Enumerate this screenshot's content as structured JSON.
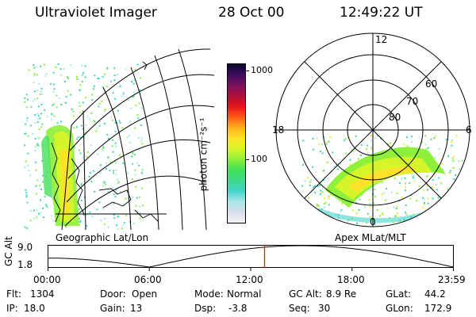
{
  "header": {
    "instrument": "Ultraviolet Imager",
    "date": "28 Oct 00",
    "time": "12:49:22 UT"
  },
  "colorbar": {
    "unit_label": "photon cm⁻²s⁻¹",
    "ticks": [
      {
        "label": "1000",
        "value": 1000
      },
      {
        "label": "100",
        "value": 100
      }
    ],
    "range": [
      20,
      1300
    ],
    "colors": [
      "#f4f4f4",
      "#d8dde8",
      "#a9e6e8",
      "#41d4c8",
      "#3fd98a",
      "#43e05a",
      "#8ef03a",
      "#d5f52a",
      "#ffe227",
      "#ffae1d",
      "#ff5a16",
      "#e3141b",
      "#b00f3a",
      "#7b1062",
      "#3e0c5e",
      "#0a0730"
    ]
  },
  "panels": {
    "left_label": "Geographic Lat/Lon",
    "right_label": "Apex  MLat/MLT"
  },
  "polar_plot": {
    "mlt_labels": [
      "12",
      "18",
      "6",
      "0"
    ],
    "lat_labels": [
      "60",
      "70",
      "80"
    ]
  },
  "timeline": {
    "y_axis_label": "GC Alt",
    "y_ticks": [
      "9.0",
      "1.8"
    ],
    "y_range": [
      1.8,
      9.0
    ],
    "x_ticks": [
      "00:00",
      "06:00",
      "12:00",
      "18:00",
      "23:59"
    ],
    "current_time_hours": 12.82,
    "marker_color": "#ff0000"
  },
  "status": {
    "row1": {
      "flt_label": "Flt:",
      "flt_value": "1304",
      "door_label": "Door:",
      "door_value": "Open",
      "mode_label": "Mode:",
      "mode_value": "Normal",
      "gcalt_label": "GC Alt:",
      "gcalt_value": "8.9 Re",
      "glat_label": "GLat:",
      "glat_value": "44.2"
    },
    "row2": {
      "ip_label": "IP:",
      "ip_value": "18.0",
      "gain_label": "Gain:",
      "gain_value": "13",
      "dsp_label": "Dsp:",
      "dsp_value": "-3.8",
      "seq_label": "Seq:",
      "seq_value": "30",
      "glon_label": "GLon:",
      "glon_value": "172.9"
    }
  }
}
